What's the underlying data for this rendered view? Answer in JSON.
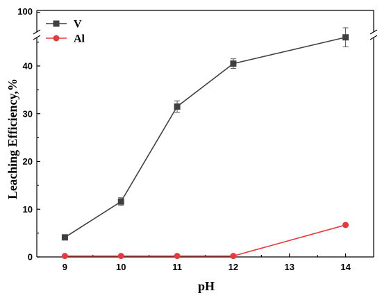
{
  "chart_data": {
    "type": "line",
    "xlabel": "pH",
    "ylabel": "Leaching Efficiency,%",
    "x": [
      9,
      10,
      11,
      12,
      14
    ],
    "x_ticks": [
      "9",
      "10",
      "11",
      "12",
      "13",
      "14"
    ],
    "y_ticks": [
      "0",
      "10",
      "20",
      "30",
      "40"
    ],
    "y_break_top_tick": "100",
    "xlim": [
      8.5,
      14.5
    ],
    "ylim": [
      0,
      48
    ],
    "y_axis_break": "between 48 and 100",
    "grid": false,
    "legend_position": "top-left",
    "series": [
      {
        "name": "V",
        "values": [
          4.1,
          11.6,
          31.5,
          40.5,
          46
        ],
        "errors": [
          0.4,
          0.8,
          1.2,
          1.0,
          2.0
        ],
        "color": "#404040",
        "marker": "square"
      },
      {
        "name": "Al",
        "values": [
          0.2,
          0.2,
          0.2,
          0.2,
          6.7
        ],
        "errors": [
          0,
          0,
          0,
          0,
          0
        ],
        "color": "#e8383d",
        "marker": "circle"
      }
    ]
  }
}
